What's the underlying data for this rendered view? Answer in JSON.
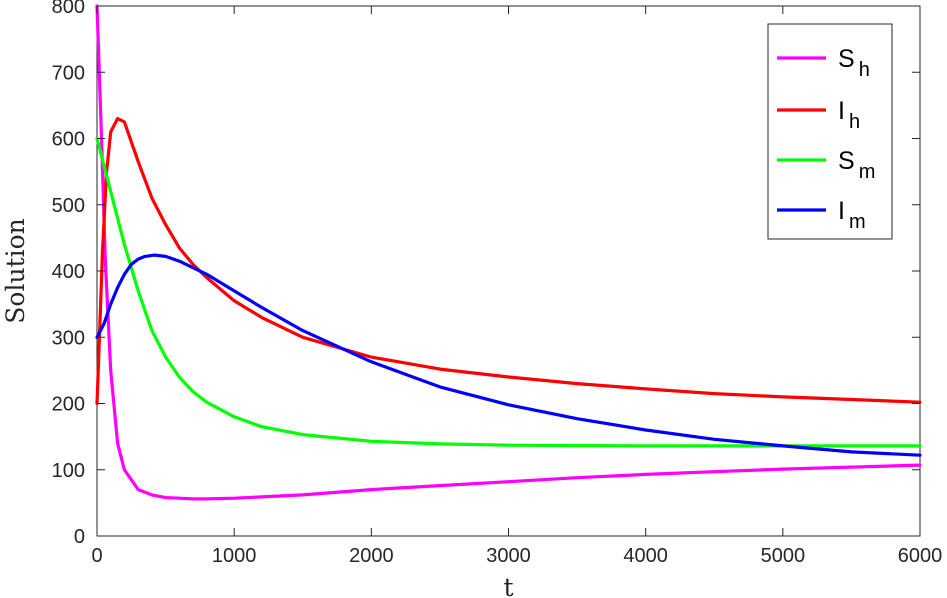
{
  "chart_data": {
    "type": "line",
    "xlabel": "t",
    "ylabel": "Solution",
    "xlim": [
      0,
      6000
    ],
    "ylim": [
      0,
      800
    ],
    "xticks": [
      "0",
      "1000",
      "2000",
      "3000",
      "4000",
      "5000",
      "6000"
    ],
    "yticks": [
      "0",
      "100",
      "200",
      "300",
      "400",
      "500",
      "600",
      "700",
      "800"
    ],
    "grid": false,
    "legend_position": "top-right",
    "series": [
      {
        "name": "Sh",
        "base": "S",
        "sub": "h",
        "color": "#ff00ff",
        "points": [
          [
            0,
            800
          ],
          [
            30,
            620
          ],
          [
            60,
            420
          ],
          [
            100,
            250
          ],
          [
            150,
            140
          ],
          [
            200,
            100
          ],
          [
            300,
            70
          ],
          [
            400,
            62
          ],
          [
            500,
            58
          ],
          [
            600,
            57
          ],
          [
            700,
            56
          ],
          [
            800,
            56
          ],
          [
            1000,
            57
          ],
          [
            1500,
            62
          ],
          [
            2000,
            70
          ],
          [
            2500,
            76
          ],
          [
            3000,
            82
          ],
          [
            3500,
            88
          ],
          [
            4000,
            93
          ],
          [
            4500,
            97
          ],
          [
            5000,
            101
          ],
          [
            5500,
            104
          ],
          [
            6000,
            107
          ]
        ]
      },
      {
        "name": "Ih",
        "base": "I",
        "sub": "h",
        "color": "#ff0000",
        "points": [
          [
            0,
            200
          ],
          [
            20,
            310
          ],
          [
            40,
            430
          ],
          [
            70,
            550
          ],
          [
            100,
            610
          ],
          [
            150,
            630
          ],
          [
            200,
            625
          ],
          [
            250,
            595
          ],
          [
            300,
            565
          ],
          [
            400,
            510
          ],
          [
            500,
            470
          ],
          [
            600,
            435
          ],
          [
            700,
            410
          ],
          [
            800,
            390
          ],
          [
            1000,
            355
          ],
          [
            1200,
            330
          ],
          [
            1500,
            300
          ],
          [
            2000,
            270
          ],
          [
            2500,
            252
          ],
          [
            3000,
            240
          ],
          [
            3500,
            230
          ],
          [
            4000,
            222
          ],
          [
            4500,
            215
          ],
          [
            5000,
            210
          ],
          [
            5500,
            206
          ],
          [
            6000,
            202
          ]
        ]
      },
      {
        "name": "Sm",
        "base": "S",
        "sub": "m",
        "color": "#00ff00",
        "points": [
          [
            0,
            600
          ],
          [
            100,
            520
          ],
          [
            200,
            440
          ],
          [
            300,
            370
          ],
          [
            400,
            310
          ],
          [
            500,
            270
          ],
          [
            600,
            240
          ],
          [
            700,
            218
          ],
          [
            800,
            202
          ],
          [
            1000,
            180
          ],
          [
            1200,
            165
          ],
          [
            1500,
            153
          ],
          [
            2000,
            143
          ],
          [
            2500,
            139
          ],
          [
            3000,
            137
          ],
          [
            4000,
            136
          ],
          [
            5000,
            136
          ],
          [
            6000,
            136
          ]
        ]
      },
      {
        "name": "Im",
        "base": "I",
        "sub": "m",
        "color": "#0000ff",
        "points": [
          [
            0,
            300
          ],
          [
            50,
            320
          ],
          [
            100,
            350
          ],
          [
            150,
            375
          ],
          [
            200,
            395
          ],
          [
            250,
            410
          ],
          [
            300,
            418
          ],
          [
            350,
            422
          ],
          [
            420,
            424
          ],
          [
            500,
            422
          ],
          [
            600,
            415
          ],
          [
            700,
            405
          ],
          [
            800,
            395
          ],
          [
            1000,
            370
          ],
          [
            1200,
            345
          ],
          [
            1500,
            310
          ],
          [
            2000,
            263
          ],
          [
            2500,
            225
          ],
          [
            3000,
            198
          ],
          [
            3500,
            177
          ],
          [
            4000,
            160
          ],
          [
            4500,
            146
          ],
          [
            5000,
            136
          ],
          [
            5500,
            127
          ],
          [
            6000,
            122
          ]
        ]
      }
    ]
  }
}
